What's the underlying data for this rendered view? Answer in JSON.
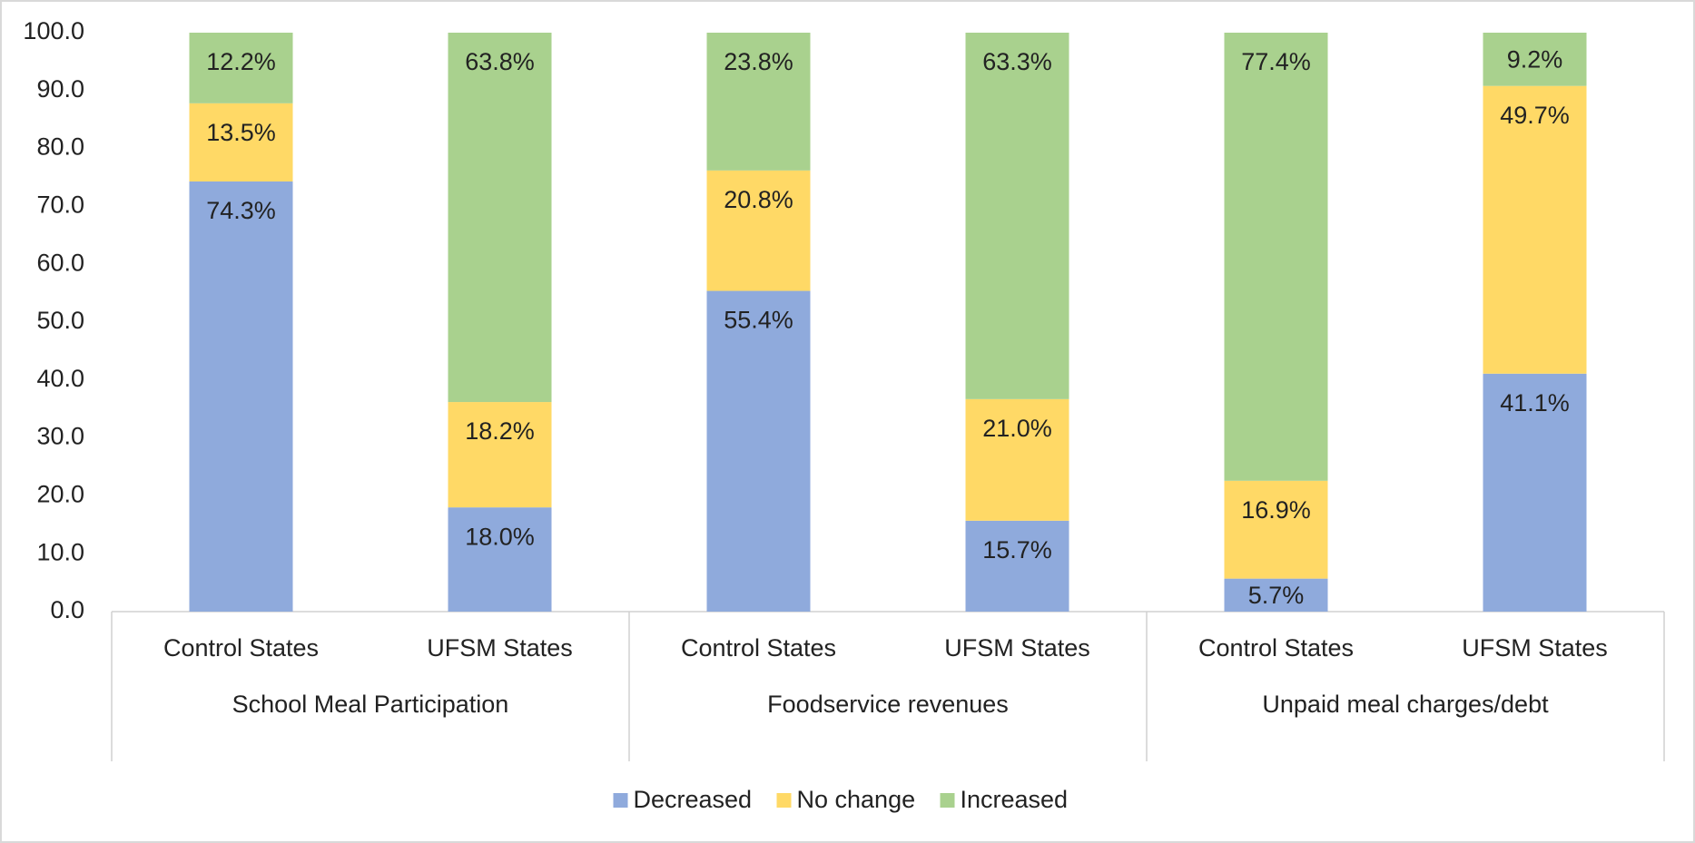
{
  "chart_data": {
    "type": "stacked_bar",
    "groups": [
      {
        "label": "School Meal Participation",
        "categories": [
          "Control States",
          "UFSM States"
        ]
      },
      {
        "label": "Foodservice revenues",
        "categories": [
          "Control States",
          "UFSM States"
        ]
      },
      {
        "label": "Unpaid meal charges/debt",
        "categories": [
          "Control States",
          "UFSM States"
        ]
      }
    ],
    "series": [
      {
        "name": "Decreased",
        "color": "#8faadc",
        "values": [
          74.3,
          18.0,
          55.4,
          15.7,
          5.7,
          41.1
        ],
        "value_labels": [
          "74.3%",
          "18.0%",
          "55.4%",
          "15.7%",
          "5.7%",
          "41.1%"
        ]
      },
      {
        "name": "No change",
        "color": "#ffd966",
        "values": [
          13.5,
          18.2,
          20.8,
          21.0,
          16.9,
          49.7
        ],
        "value_labels": [
          "13.5%",
          "18.2%",
          "20.8%",
          "21.0%",
          "16.9%",
          "49.7%"
        ]
      },
      {
        "name": "Increased",
        "color": "#a9d18e",
        "values": [
          12.2,
          63.8,
          23.8,
          63.3,
          77.4,
          9.2
        ],
        "value_labels": [
          "12.2%",
          "63.8%",
          "23.8%",
          "63.3%",
          "77.4%",
          "9.2%"
        ]
      }
    ],
    "ylim": [
      0,
      100
    ],
    "yticks": [
      {
        "value": 0,
        "label": "0.0"
      },
      {
        "value": 10,
        "label": "10.0"
      },
      {
        "value": 20,
        "label": "20.0"
      },
      {
        "value": 30,
        "label": "30.0"
      },
      {
        "value": 40,
        "label": "40.0"
      },
      {
        "value": 50,
        "label": "50.0"
      },
      {
        "value": 60,
        "label": "60.0"
      },
      {
        "value": 70,
        "label": "70.0"
      },
      {
        "value": 80,
        "label": "80.0"
      },
      {
        "value": 90,
        "label": "90.0"
      },
      {
        "value": 100,
        "label": "100.0"
      }
    ],
    "legend": "bottom"
  }
}
